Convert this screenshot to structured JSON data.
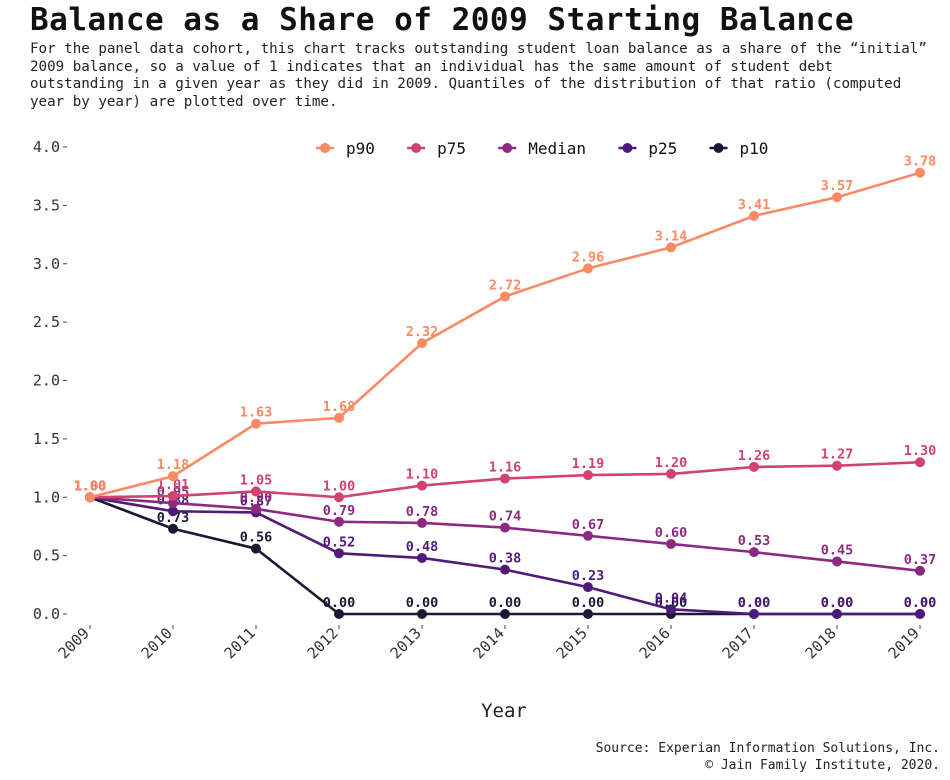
{
  "chart_data": {
    "type": "line",
    "title": "Balance as a Share of 2009 Starting Balance",
    "subtitle": "For the panel data cohort, this chart tracks outstanding student loan balance as a share of the “initial” 2009 balance, so a value of 1 indicates that an individual has the same amount of student debt outstanding in a given year as they did in 2009. Quantiles of the distribution of that ratio (computed year by year) are plotted over time.",
    "xlabel": "Year",
    "ylabel": "",
    "x": [
      "2009",
      "2010",
      "2011",
      "2012",
      "2013",
      "2014",
      "2015",
      "2016",
      "2017",
      "2018",
      "2019"
    ],
    "ylim": [
      0,
      4
    ],
    "yticks": [
      "0.0",
      "0.5",
      "1.0",
      "1.5",
      "2.0",
      "2.5",
      "3.0",
      "3.5",
      "4.0"
    ],
    "grid": false,
    "legend_position": "top",
    "series": [
      {
        "name": "p90",
        "color": "#f98a64",
        "values": [
          1.0,
          1.18,
          1.63,
          1.68,
          2.32,
          2.72,
          2.96,
          3.14,
          3.41,
          3.57,
          3.78
        ],
        "labels": [
          "1.00",
          "1.18",
          "1.63",
          "1.68",
          "2.32",
          "2.72",
          "2.96",
          "3.14",
          "3.41",
          "3.57",
          "3.78"
        ]
      },
      {
        "name": "p75",
        "color": "#d1426f",
        "values": [
          1.0,
          1.01,
          1.05,
          1.0,
          1.1,
          1.16,
          1.19,
          1.2,
          1.26,
          1.27,
          1.3
        ],
        "labels": [
          "1.00",
          "1.01",
          "1.05",
          "1.00",
          "1.10",
          "1.16",
          "1.19",
          "1.20",
          "1.26",
          "1.27",
          "1.30"
        ]
      },
      {
        "name": "Median",
        "color": "#8c2981",
        "values": [
          1.0,
          0.95,
          0.9,
          0.79,
          0.78,
          0.74,
          0.67,
          0.6,
          0.53,
          0.45,
          0.37
        ],
        "labels": [
          "1.00",
          "0.95",
          "0.90",
          "0.79",
          "0.78",
          "0.74",
          "0.67",
          "0.60",
          "0.53",
          "0.45",
          "0.37"
        ]
      },
      {
        "name": "p25",
        "color": "#4f1a7a",
        "values": [
          1.0,
          0.88,
          0.87,
          0.52,
          0.48,
          0.38,
          0.23,
          0.04,
          0.0,
          0.0,
          0.0
        ],
        "labels": [
          "1.00",
          "0.88",
          "0.87",
          "0.52",
          "0.48",
          "0.38",
          "0.23",
          "0.04",
          "0.00",
          "0.00",
          "0.00"
        ]
      },
      {
        "name": "p10",
        "color": "#1c1834",
        "values": [
          1.0,
          0.73,
          0.56,
          0.0,
          0.0,
          0.0,
          0.0,
          0.0,
          0.0,
          0.0,
          0.0
        ],
        "labels": [
          "1.00",
          "0.73",
          "0.56",
          "0.00",
          "0.00",
          "0.00",
          "0.00",
          "0.00",
          "0.00",
          "0.00",
          "0.00"
        ]
      }
    ],
    "source_lines": [
      "Source: Experian Information Solutions, Inc.",
      "© Jain Family Institute, 2020."
    ]
  }
}
